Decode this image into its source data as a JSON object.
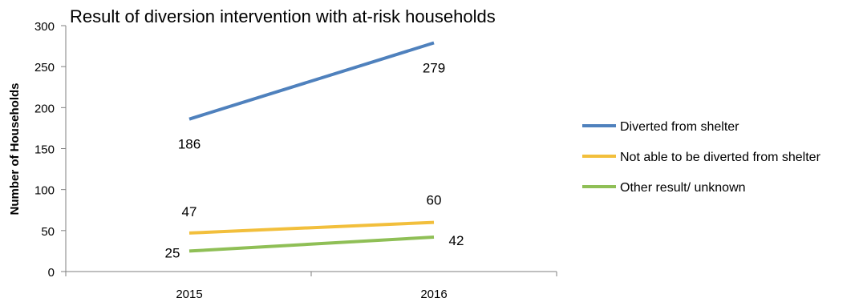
{
  "chart_data": {
    "type": "line",
    "title": "Result of diversion intervention with at-risk households",
    "ylabel": "Number of Households",
    "xlabel": "",
    "categories": [
      "2015",
      "2016"
    ],
    "ylim": [
      0,
      300
    ],
    "yticks": [
      0,
      50,
      100,
      150,
      200,
      250,
      300
    ],
    "grid": false,
    "legend_position": "right",
    "series": [
      {
        "name": "Diverted from shelter",
        "values": [
          186,
          279
        ],
        "labels": [
          "186",
          "279"
        ],
        "color": "#4f81bd"
      },
      {
        "name": "Not able to be diverted from shelter",
        "values": [
          47,
          60
        ],
        "labels": [
          "47",
          "60"
        ],
        "color": "#f2bf3c"
      },
      {
        "name": "Other result/ unknown",
        "values": [
          25,
          42
        ],
        "labels": [
          "25",
          "42"
        ],
        "color": "#8fbf56"
      }
    ]
  }
}
